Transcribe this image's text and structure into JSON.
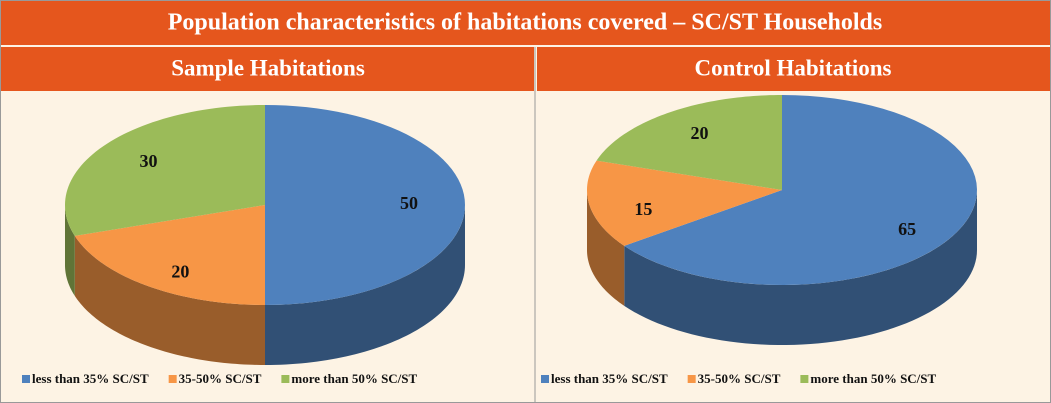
{
  "title": "Population characteristics of habitations covered – SC/ST Households",
  "chart_data": [
    {
      "type": "pie",
      "title": "Sample Habitations",
      "categories": [
        "less than 35% SC/ST",
        "35-50% SC/ST",
        "more than 50% SC/ST"
      ],
      "values": [
        50,
        20,
        30
      ],
      "colors": [
        "#4f81bd",
        "#f79646",
        "#9bbb59"
      ]
    },
    {
      "type": "pie",
      "title": "Control Habitations",
      "categories": [
        "less than 35% SC/ST",
        "35-50% SC/ST",
        "more than 50% SC/ST"
      ],
      "values": [
        65,
        15,
        20
      ],
      "colors": [
        "#4f81bd",
        "#f79646",
        "#9bbb59"
      ]
    }
  ]
}
